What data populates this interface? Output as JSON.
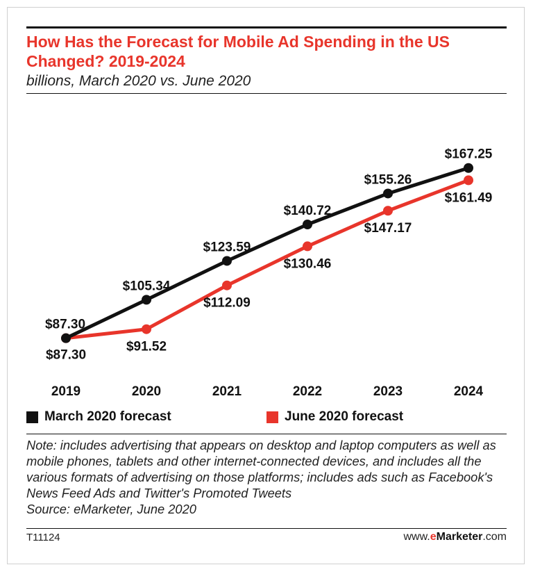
{
  "title": "How Has the Forecast for Mobile Ad Spending in the US Changed? 2019-2024",
  "subtitle": "billions, March 2020 vs. June 2020",
  "colors": {
    "accent": "#e8352b",
    "march": "#111111",
    "june": "#e8352b"
  },
  "chart_data": {
    "type": "line",
    "x": [
      "2019",
      "2020",
      "2021",
      "2022",
      "2023",
      "2024"
    ],
    "ylim": [
      80,
      175
    ],
    "grid": false,
    "legend_position": "bottom",
    "series": [
      {
        "name": "March 2020 forecast",
        "color": "#111111",
        "values": [
          87.3,
          105.34,
          123.59,
          140.72,
          155.26,
          167.25
        ],
        "labels": [
          "$87.30",
          "$105.34",
          "$123.59",
          "$140.72",
          "$155.26",
          "$167.25"
        ]
      },
      {
        "name": "June 2020 forecast",
        "color": "#e8352b",
        "values": [
          87.3,
          91.52,
          112.09,
          130.46,
          147.17,
          161.49
        ],
        "labels": [
          "$87.30",
          "$91.52",
          "$112.09",
          "$130.46",
          "$147.17",
          "$161.49"
        ]
      }
    ]
  },
  "note": "Note: includes advertising that appears on desktop and laptop computers as well as mobile phones, tablets and other internet-connected devices, and includes all the various formats of advertising on those platforms; includes ads such as Facebook's News Feed Ads and Twitter's Promoted Tweets",
  "source": "Source: eMarketer, June 2020",
  "chart_code": "T11124",
  "brand": {
    "prefix": "www.",
    "e": "e",
    "name": "Marketer",
    "suffix": ".com"
  }
}
